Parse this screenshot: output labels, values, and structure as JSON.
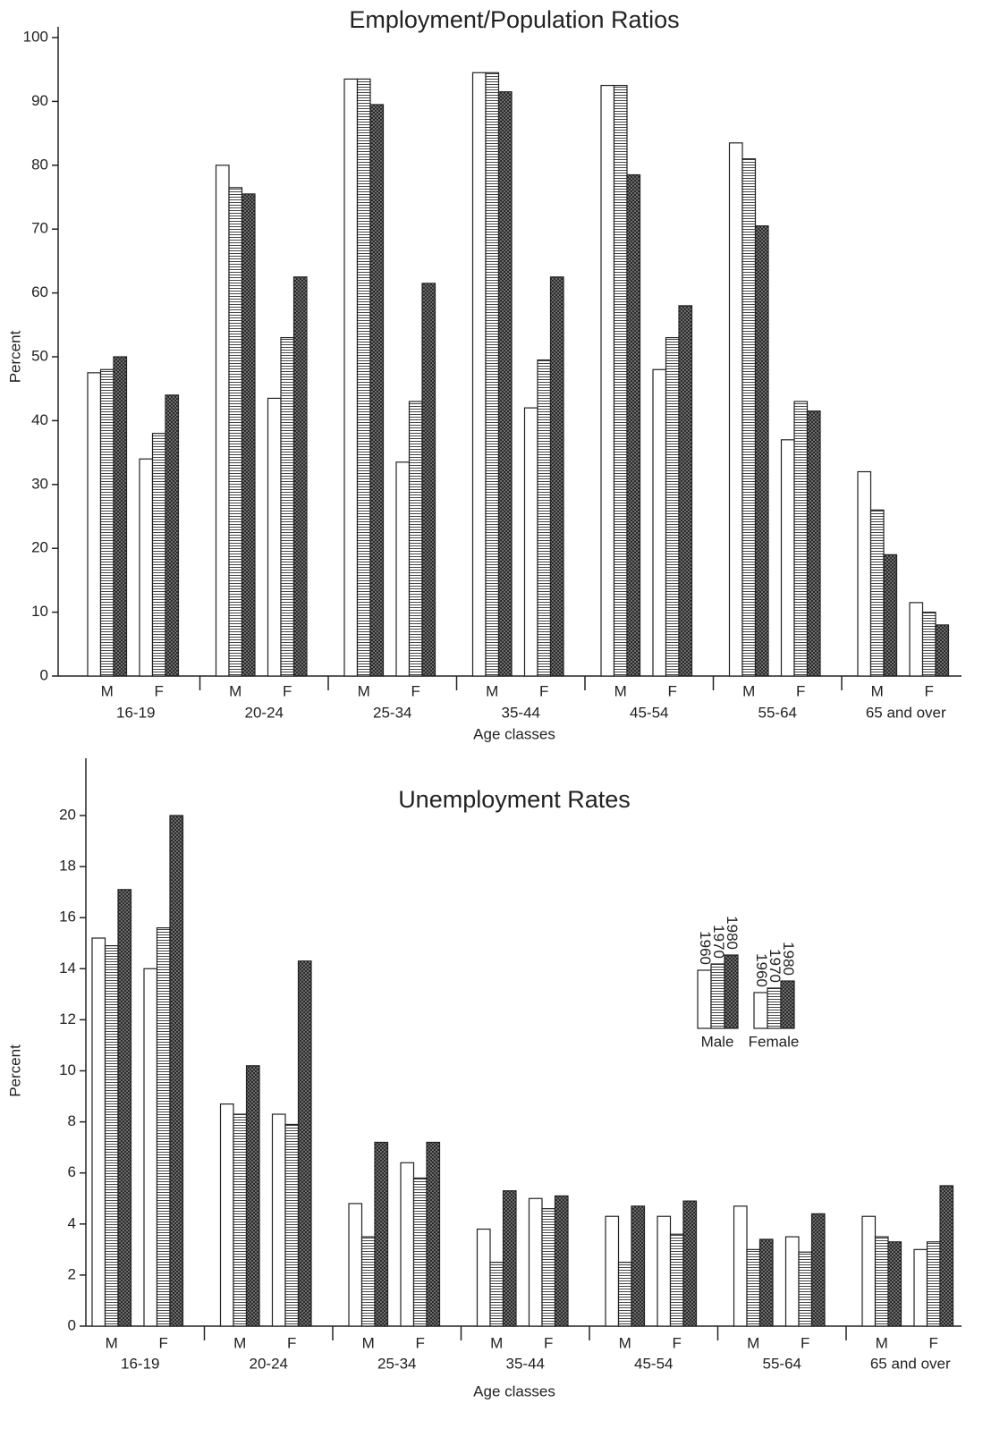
{
  "chart_data": [
    {
      "type": "bar",
      "title": "Employment/Population Ratios",
      "y_label": "Percent",
      "x_label": "Age classes",
      "groups": [
        "16-19",
        "20-24",
        "25-34",
        "35-44",
        "45-54",
        "55-64",
        "65 and over"
      ],
      "categories": [
        "M",
        "F",
        "M",
        "F",
        "M",
        "F",
        "M",
        "F",
        "M",
        "F",
        "M",
        "F",
        "M",
        "F"
      ],
      "series": [
        {
          "color": "#ffffff",
          "pattern": "none",
          "values": [
            47.5,
            34,
            80,
            43.5,
            93.5,
            33.5,
            94.5,
            42,
            92.5,
            48,
            83.5,
            37,
            32,
            11.5
          ]
        },
        {
          "color": "#bbbbbb",
          "pattern": "hlines",
          "values": [
            48,
            38,
            76.5,
            53,
            93.5,
            43,
            94.5,
            49.5,
            92.5,
            53,
            81,
            43,
            26,
            10
          ]
        },
        {
          "color": "#555555",
          "pattern": "crosshatch",
          "values": [
            50,
            44,
            75.5,
            62.5,
            89.5,
            61.5,
            91.5,
            62.5,
            78.5,
            58,
            70.5,
            41.5,
            19,
            8
          ]
        }
      ],
      "ylim": [
        0,
        100
      ],
      "yticks": [
        0,
        10,
        20,
        30,
        40,
        50,
        60,
        70,
        80,
        90,
        100
      ]
    },
    {
      "type": "bar",
      "title": "Unemployment Rates",
      "y_label": "Percent",
      "x_label": "Age classes",
      "groups": [
        "16-19",
        "20-24",
        "25-34",
        "35-44",
        "45-54",
        "55-64",
        "65 and over"
      ],
      "categories": [
        "M",
        "F",
        "M",
        "F",
        "M",
        "F",
        "M",
        "F",
        "M",
        "F",
        "M",
        "F",
        "M",
        "F"
      ],
      "series": [
        {
          "name": "1960",
          "color": "#ffffff",
          "pattern": "none",
          "values": [
            15.2,
            14.0,
            8.7,
            8.3,
            4.8,
            6.4,
            3.8,
            5.0,
            4.3,
            4.3,
            4.7,
            3.5,
            4.3,
            3.0
          ]
        },
        {
          "name": "1970",
          "color": "#bbbbbb",
          "pattern": "hlines",
          "values": [
            14.9,
            15.6,
            8.3,
            7.9,
            3.5,
            5.8,
            2.5,
            4.6,
            2.5,
            3.6,
            3.0,
            2.9,
            3.5,
            3.3
          ]
        },
        {
          "name": "1980",
          "color": "#555555",
          "pattern": "crosshatch",
          "values": [
            17.1,
            20.0,
            10.2,
            14.3,
            7.2,
            7.2,
            5.3,
            5.1,
            4.7,
            4.9,
            3.4,
            4.4,
            3.3,
            5.5
          ]
        }
      ],
      "legend_labels": [
        "Male",
        "Female"
      ],
      "ylim": [
        0,
        20
      ],
      "yticks": [
        0,
        2,
        4,
        6,
        8,
        10,
        12,
        14,
        16,
        18,
        20
      ]
    }
  ]
}
